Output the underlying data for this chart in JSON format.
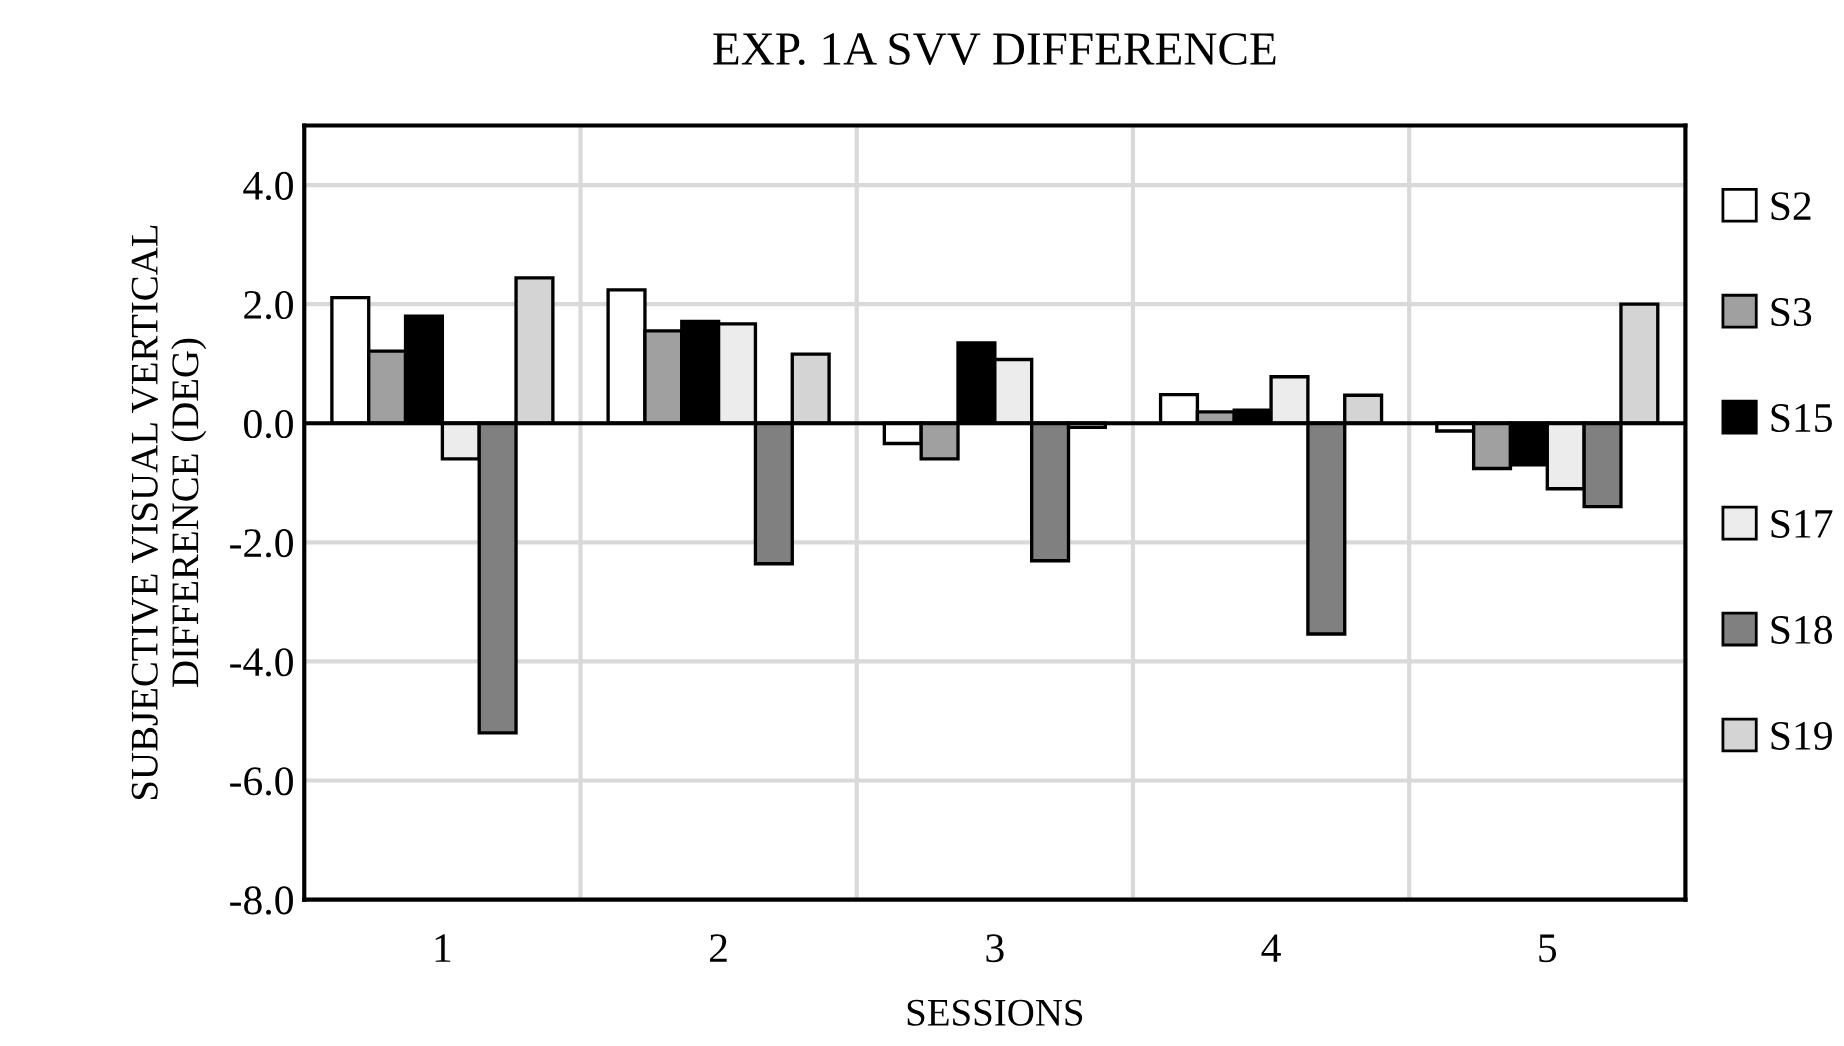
{
  "chart_data": {
    "type": "bar",
    "title": "EXP. 1A SVV DIFFERENCE",
    "xlabel": "SESSIONS",
    "ylabel": "SUBJECTIVE VISUAL VERTICAL\nDIFFERENCE (DEG)",
    "categories": [
      "1",
      "2",
      "3",
      "4",
      "5"
    ],
    "series": [
      {
        "name": "S2",
        "color": "#ffffff",
        "values": [
          2.11,
          2.24,
          -0.34,
          0.48,
          -0.13
        ]
      },
      {
        "name": "S3",
        "color": "#a0a0a0",
        "values": [
          1.21,
          1.55,
          -0.6,
          0.19,
          -0.76
        ]
      },
      {
        "name": "S15",
        "color": "#000000",
        "values": [
          1.8,
          1.71,
          1.35,
          0.22,
          -0.7
        ]
      },
      {
        "name": "S17",
        "color": "#ececec",
        "values": [
          -0.6,
          1.67,
          1.07,
          0.78,
          -1.1
        ]
      },
      {
        "name": "S18",
        "color": "#808080",
        "values": [
          -5.2,
          -2.36,
          -2.31,
          -3.54,
          -1.4
        ]
      },
      {
        "name": "S19",
        "color": "#d4d4d4",
        "values": [
          2.44,
          1.16,
          -0.07,
          0.47,
          2.0
        ]
      }
    ],
    "ylim": [
      -8,
      5
    ],
    "yticks": [
      {
        "value": -8,
        "label": "-8.0"
      },
      {
        "value": -6,
        "label": "-6.0"
      },
      {
        "value": -4,
        "label": "-4.0"
      },
      {
        "value": -2,
        "label": "-2.0"
      },
      {
        "value": 0,
        "label": "0.0"
      },
      {
        "value": 2,
        "label": "2.0"
      },
      {
        "value": 4,
        "label": "4.0"
      }
    ],
    "grid": true,
    "legend": "right"
  }
}
